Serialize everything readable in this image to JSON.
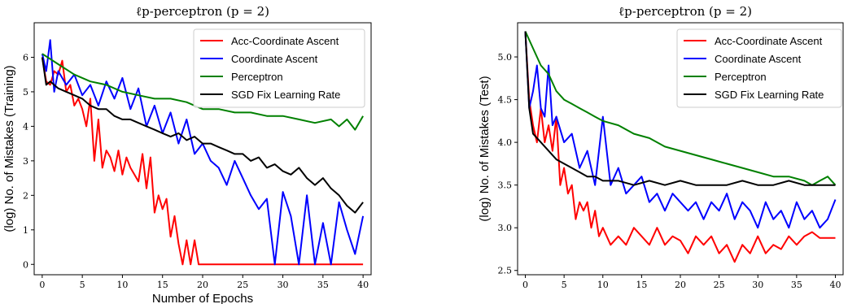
{
  "chart_data": [
    {
      "type": "line",
      "title": "ℓp-perceptron (p = 2)",
      "xlabel": "Number of Epochs",
      "ylabel": "(log) No. of Mistakes (Training)",
      "xlim": [
        -1,
        41
      ],
      "ylim": [
        -0.3,
        7.0
      ],
      "xticks": [
        0,
        5,
        10,
        15,
        20,
        25,
        30,
        35,
        40
      ],
      "yticks": [
        0,
        1,
        2,
        3,
        4,
        5,
        6
      ],
      "grid": false,
      "legend_position": "top-right",
      "series": [
        {
          "name": "Acc-Coordinate Ascent",
          "color": "#ff0000",
          "x": [
            0,
            0.5,
            1,
            1.5,
            2,
            2.5,
            3,
            3.5,
            4,
            4.5,
            5,
            5.5,
            6,
            6.5,
            7,
            7.5,
            8,
            8.5,
            9,
            9.5,
            10,
            10.5,
            11,
            11.5,
            12,
            12.5,
            13,
            13.5,
            14,
            14.5,
            15,
            15.5,
            16,
            16.5,
            17,
            17.5,
            18,
            18.5,
            19,
            19.5,
            20,
            25,
            30,
            35,
            40
          ],
          "y": [
            6.0,
            5.3,
            5.2,
            5.6,
            5.5,
            5.9,
            5.0,
            5.2,
            4.6,
            4.8,
            4.5,
            4.0,
            4.8,
            3.0,
            4.2,
            2.8,
            3.3,
            3.1,
            2.7,
            3.3,
            2.6,
            3.1,
            2.8,
            2.6,
            2.4,
            3.2,
            2.2,
            3.1,
            1.5,
            2.0,
            1.6,
            1.9,
            0.8,
            1.4,
            0.6,
            0.0,
            0.7,
            0.0,
            0.7,
            0.0,
            0.0,
            0.0,
            0.0,
            0.0,
            0.0
          ]
        },
        {
          "name": "Coordinate Ascent",
          "color": "#0000ff",
          "x": [
            0,
            0.5,
            1,
            1.5,
            2,
            3,
            4,
            5,
            6,
            7,
            8,
            9,
            10,
            11,
            12,
            13,
            14,
            15,
            16,
            17,
            18,
            19,
            20,
            21,
            22,
            23,
            24,
            25,
            26,
            27,
            28,
            29,
            30,
            31,
            32,
            33,
            34,
            35,
            36,
            37,
            38,
            39,
            40
          ],
          "y": [
            6.1,
            5.6,
            6.5,
            5.0,
            5.6,
            5.2,
            5.5,
            4.9,
            5.2,
            4.6,
            5.3,
            4.8,
            5.4,
            4.5,
            5.1,
            4.0,
            4.6,
            3.8,
            4.4,
            3.5,
            4.2,
            3.2,
            3.5,
            3.0,
            2.8,
            2.3,
            3.0,
            2.5,
            2.0,
            1.6,
            1.9,
            0.0,
            2.1,
            1.4,
            0.0,
            2.0,
            0.0,
            1.2,
            0.0,
            1.8,
            1.0,
            0.3,
            1.4
          ]
        },
        {
          "name": "Perceptron",
          "color": "#008000",
          "x": [
            0,
            2,
            4,
            6,
            8,
            10,
            12,
            14,
            16,
            18,
            20,
            22,
            24,
            26,
            28,
            30,
            32,
            34,
            36,
            37,
            38,
            39,
            40
          ],
          "y": [
            6.1,
            5.8,
            5.5,
            5.3,
            5.2,
            5.0,
            4.9,
            4.8,
            4.8,
            4.7,
            4.5,
            4.5,
            4.4,
            4.4,
            4.3,
            4.3,
            4.2,
            4.1,
            4.2,
            4.0,
            4.2,
            3.9,
            4.3
          ]
        },
        {
          "name": "SGD Fix Learning Rate",
          "color": "#000000",
          "x": [
            0,
            0.5,
            1,
            2,
            3,
            4,
            5,
            6,
            7,
            8,
            9,
            10,
            11,
            12,
            13,
            14,
            15,
            16,
            17,
            18,
            19,
            20,
            21,
            22,
            23,
            24,
            25,
            26,
            27,
            28,
            29,
            30,
            31,
            32,
            33,
            34,
            35,
            36,
            37,
            38,
            39,
            40
          ],
          "y": [
            6.0,
            5.2,
            5.3,
            5.1,
            5.0,
            4.9,
            4.8,
            4.6,
            4.5,
            4.5,
            4.3,
            4.2,
            4.2,
            4.1,
            4.0,
            3.9,
            3.8,
            3.7,
            3.8,
            3.6,
            3.7,
            3.5,
            3.5,
            3.4,
            3.3,
            3.2,
            3.2,
            3.0,
            3.1,
            2.8,
            2.9,
            2.7,
            2.6,
            2.8,
            2.5,
            2.3,
            2.5,
            2.2,
            2.0,
            1.7,
            1.5,
            1.8
          ]
        }
      ]
    },
    {
      "type": "line",
      "title": "ℓp-perceptron (p = 2)",
      "xlabel": "",
      "ylabel": "(log) No. of Mistakes (Test)",
      "xlim": [
        -1,
        41
      ],
      "ylim": [
        2.45,
        5.4
      ],
      "xticks": [
        0,
        5,
        10,
        15,
        20,
        25,
        30,
        35,
        40
      ],
      "yticks": [
        2.5,
        3.0,
        3.5,
        4.0,
        4.5,
        5.0
      ],
      "grid": false,
      "legend_position": "top-right",
      "series": [
        {
          "name": "Acc-Coordinate Ascent",
          "color": "#ff0000",
          "x": [
            0,
            0.5,
            1,
            1.5,
            2,
            2.5,
            3,
            3.5,
            4,
            4.5,
            5,
            5.5,
            6,
            6.5,
            7,
            7.5,
            8,
            8.5,
            9,
            9.5,
            10,
            11,
            12,
            13,
            14,
            15,
            16,
            17,
            18,
            19,
            20,
            21,
            22,
            23,
            24,
            25,
            26,
            27,
            28,
            29,
            30,
            31,
            32,
            33,
            34,
            35,
            36,
            37,
            38,
            39,
            40
          ],
          "y": [
            5.3,
            4.5,
            4.2,
            4.0,
            4.4,
            4.0,
            4.2,
            3.9,
            4.3,
            3.5,
            3.7,
            3.4,
            3.5,
            3.1,
            3.3,
            3.2,
            3.3,
            3.0,
            3.2,
            2.9,
            3.0,
            2.8,
            2.9,
            2.8,
            3.0,
            2.9,
            2.8,
            3.0,
            2.8,
            2.9,
            2.85,
            2.7,
            2.9,
            2.8,
            2.9,
            2.7,
            2.8,
            2.6,
            2.8,
            2.7,
            2.9,
            2.7,
            2.8,
            2.75,
            2.9,
            2.8,
            2.9,
            2.95,
            2.88,
            2.88,
            2.88
          ]
        },
        {
          "name": "Coordinate Ascent",
          "color": "#0000ff",
          "x": [
            0,
            0.5,
            1,
            1.5,
            2,
            2.5,
            3,
            3.5,
            4,
            5,
            6,
            7,
            8,
            9,
            10,
            11,
            12,
            13,
            14,
            15,
            16,
            17,
            18,
            19,
            20,
            21,
            22,
            23,
            24,
            25,
            26,
            27,
            28,
            29,
            30,
            31,
            32,
            33,
            34,
            35,
            36,
            37,
            38,
            39,
            40
          ],
          "y": [
            5.3,
            4.4,
            4.6,
            4.9,
            4.4,
            4.3,
            4.9,
            4.2,
            4.3,
            4.0,
            4.1,
            3.7,
            3.9,
            3.5,
            4.3,
            3.5,
            3.7,
            3.4,
            3.5,
            3.6,
            3.3,
            3.4,
            3.2,
            3.4,
            3.3,
            3.2,
            3.3,
            3.1,
            3.3,
            3.2,
            3.4,
            3.1,
            3.3,
            3.2,
            3.0,
            3.3,
            3.1,
            3.2,
            3.0,
            3.3,
            3.1,
            3.2,
            3.0,
            3.1,
            3.33
          ]
        },
        {
          "name": "Perceptron",
          "color": "#008000",
          "x": [
            0,
            1,
            2,
            3,
            4,
            5,
            6,
            7,
            8,
            9,
            10,
            12,
            14,
            16,
            18,
            20,
            22,
            24,
            26,
            28,
            30,
            32,
            34,
            36,
            37,
            38,
            39,
            40
          ],
          "y": [
            5.3,
            5.1,
            4.9,
            4.8,
            4.6,
            4.5,
            4.45,
            4.4,
            4.35,
            4.3,
            4.25,
            4.2,
            4.1,
            4.05,
            3.95,
            3.9,
            3.85,
            3.8,
            3.75,
            3.7,
            3.65,
            3.6,
            3.6,
            3.55,
            3.5,
            3.55,
            3.6,
            3.5
          ]
        },
        {
          "name": "SGD Fix Learning Rate",
          "color": "#000000",
          "x": [
            0,
            0.5,
            1,
            2,
            3,
            4,
            5,
            6,
            7,
            8,
            9,
            10,
            12,
            14,
            16,
            18,
            20,
            22,
            24,
            26,
            28,
            30,
            32,
            34,
            36,
            38,
            40
          ],
          "y": [
            5.3,
            4.4,
            4.1,
            4.0,
            3.9,
            3.8,
            3.75,
            3.7,
            3.65,
            3.6,
            3.6,
            3.55,
            3.55,
            3.5,
            3.55,
            3.5,
            3.55,
            3.5,
            3.5,
            3.5,
            3.55,
            3.5,
            3.5,
            3.55,
            3.5,
            3.5,
            3.5
          ]
        }
      ]
    }
  ]
}
